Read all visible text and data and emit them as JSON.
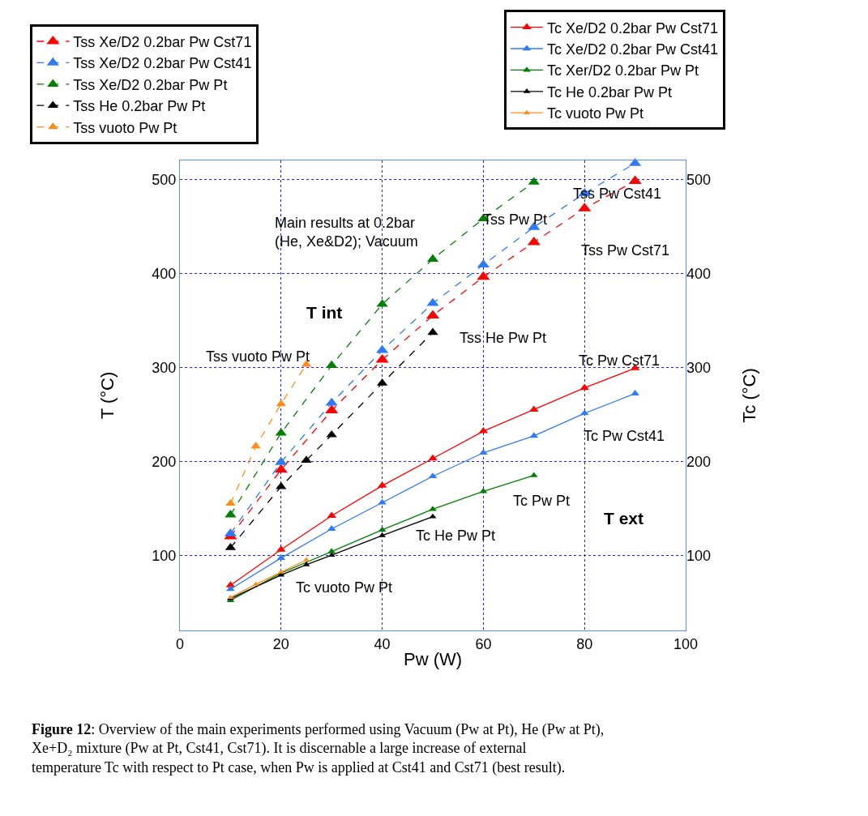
{
  "chart_data": {
    "type": "line",
    "xlabel": "Pw (W)",
    "ylabel": "T (°C)",
    "y2label": "Tc (°C)",
    "xlim": [
      0,
      100
    ],
    "xticks": [
      0,
      20,
      40,
      60,
      80,
      100
    ],
    "ylim": [
      20,
      520
    ],
    "yticks": [
      100,
      200,
      300,
      400,
      500
    ],
    "y2lim": [
      20,
      520
    ],
    "y2ticks": [
      100,
      200,
      300,
      400,
      500
    ],
    "grid": true,
    "legend": "top",
    "marker": "triangle",
    "series": [
      {
        "name": "Tss Xe/D2 0.2bar Pw Cst71",
        "color": "#ff0000",
        "line_style": "dashed",
        "x": [
          10,
          20,
          30,
          40,
          50,
          60,
          70,
          80,
          90
        ],
        "values": [
          120,
          191,
          254,
          308,
          355,
          396,
          433,
          469,
          498
        ]
      },
      {
        "name": "Tss Xe/D2 0.2bar Pw Cst41",
        "color": "#2f7af5",
        "line_style": "dashed",
        "x": [
          10,
          20,
          30,
          40,
          50,
          60,
          70,
          80,
          90
        ],
        "values": [
          123,
          199,
          262,
          318,
          368,
          409,
          449,
          485,
          517
        ]
      },
      {
        "name": "Tss Xe/D2 0.2bar Pw Pt",
        "color": "#008000",
        "line_style": "dashed",
        "x": [
          10,
          20,
          30,
          40,
          50,
          60,
          70
        ],
        "values": [
          143,
          230,
          302,
          367,
          415,
          458,
          497
        ]
      },
      {
        "name": "Tss He 0.2bar Pw Pt",
        "color": "#000000",
        "line_style": "dashed",
        "x": [
          10,
          20,
          25,
          30,
          40,
          50
        ],
        "values": [
          108,
          173,
          201,
          228,
          283,
          337
        ]
      },
      {
        "name": "Tss vuoto Pw Pt",
        "color": "#ff8c1a",
        "line_style": "dashed",
        "x": [
          10,
          15,
          20,
          25
        ],
        "values": [
          155,
          216,
          261,
          303
        ]
      },
      {
        "name": "Tc Xe/D2 0.2bar Pw Cst71",
        "color": "#ff0000",
        "line_style": "solid",
        "axis": "y2",
        "x": [
          10,
          20,
          30,
          40,
          50,
          60,
          70,
          80,
          90
        ],
        "values": [
          68,
          106,
          142,
          174,
          203,
          232,
          255,
          278,
          299
        ]
      },
      {
        "name": "Tc Xe/D2 0.2bar Pw Cst41",
        "color": "#2f7af5",
        "line_style": "solid",
        "axis": "y2",
        "x": [
          10,
          20,
          30,
          40,
          50,
          60,
          70,
          80,
          90
        ],
        "values": [
          64,
          97,
          128,
          156,
          184,
          209,
          227,
          251,
          272
        ]
      },
      {
        "name": "Tc Xer/D2 0.2bar Pw Pt",
        "color": "#008000",
        "line_style": "solid",
        "axis": "y2",
        "x": [
          10,
          20,
          30,
          40,
          50,
          60,
          70
        ],
        "values": [
          52,
          81,
          104,
          127,
          149,
          168,
          185
        ]
      },
      {
        "name": "Tc He 0.2bar Pw Pt",
        "color": "#000000",
        "line_style": "solid",
        "axis": "y2",
        "x": [
          10,
          20,
          25,
          30,
          40,
          50
        ],
        "values": [
          54,
          79,
          90,
          100,
          121,
          141
        ]
      },
      {
        "name": "Tc vuoto Pw Pt",
        "color": "#ff8c1a",
        "line_style": "solid",
        "axis": "y2",
        "x": [
          10,
          15,
          20,
          25
        ],
        "values": [
          55,
          69,
          82,
          95
        ]
      }
    ],
    "annotations": [
      "Main results at 0.2bar\n(He, Xe&D2); Vacuum",
      "T int",
      "T ext",
      "Tss Pw Cst41",
      "Tss Pw Pt",
      "Tss Pw Cst71",
      "Tss He Pw Pt",
      "Tss vuoto Pw Pt",
      "Tc Pw Cst71",
      "Tc Pw Cst41",
      "Tc Pw Pt",
      "Tc He Pw Pt",
      "Tc vuoto Pw Pt",
      "Figure 12: Overview of the main experiments performed using Vacuum (Pw at Pt), He (Pw at Pt), Xe+D₂ mixture (Pw at Pt, Cst41, Cst71). It is discernable a large increase of external temperature Tc with respect to Pt case, when Pw is applied at Cst41 and Cst71 (best result)."
    ]
  }
}
